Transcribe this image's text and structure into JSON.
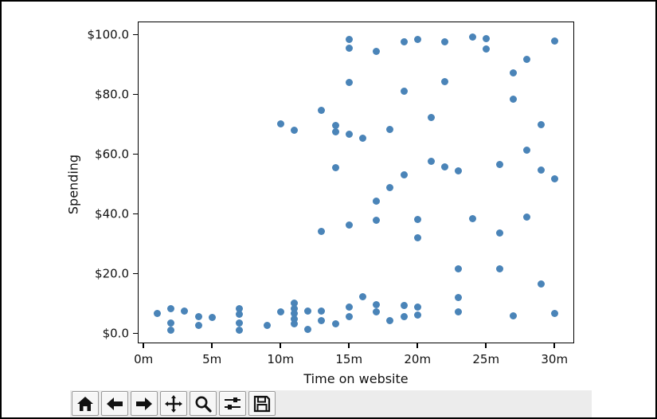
{
  "window": {
    "background": "#ffffff",
    "border_color": "#000000"
  },
  "chart_data": {
    "type": "scatter",
    "title": "",
    "xlabel": "Time on website",
    "ylabel": "Spending",
    "x_tick_values": [
      0,
      5,
      10,
      15,
      20,
      25,
      30
    ],
    "x_tick_labels": [
      "0m",
      "5m",
      "10m",
      "15m",
      "20m",
      "25m",
      "30m"
    ],
    "y_tick_values": [
      0,
      20,
      40,
      60,
      80,
      100
    ],
    "y_tick_labels": [
      "$0.0",
      "$20.0",
      "$40.0",
      "$60.0",
      "$80.0",
      "$100.0"
    ],
    "xlim": [
      -0.42,
      31.44
    ],
    "ylim": [
      -3.33,
      104.4
    ],
    "grid": false,
    "legend": null,
    "dot_color": "#4a84b8",
    "points": [
      [
        1,
        6.6
      ],
      [
        2,
        8.4
      ],
      [
        2,
        3.5
      ],
      [
        2,
        1.0
      ],
      [
        3,
        7.5
      ],
      [
        4,
        5.5
      ],
      [
        4,
        2.8
      ],
      [
        5,
        5.3
      ],
      [
        7,
        8.4
      ],
      [
        7,
        6.5
      ],
      [
        7,
        3.6
      ],
      [
        7,
        1.0
      ],
      [
        9,
        2.6
      ],
      [
        10,
        7.1
      ],
      [
        11,
        10.2
      ],
      [
        11,
        8.4
      ],
      [
        11,
        6.6
      ],
      [
        11,
        4.9
      ],
      [
        11,
        3.1
      ],
      [
        12,
        7.5
      ],
      [
        12,
        1.3
      ],
      [
        13,
        7.5
      ],
      [
        13,
        4.4
      ],
      [
        14,
        3.1
      ],
      [
        15,
        8.9
      ],
      [
        15,
        5.6
      ],
      [
        16,
        12.2
      ],
      [
        17,
        9.5
      ],
      [
        17,
        7.3
      ],
      [
        18,
        4.4
      ],
      [
        19,
        9.3
      ],
      [
        19,
        5.5
      ],
      [
        20,
        8.7
      ],
      [
        20,
        6.2
      ],
      [
        23,
        11.9
      ],
      [
        23,
        7.3
      ],
      [
        27,
        5.9
      ],
      [
        29,
        16.6
      ],
      [
        30,
        6.8
      ],
      [
        10,
        70.2
      ],
      [
        11,
        68.1
      ],
      [
        13,
        74.8
      ],
      [
        13,
        34.2
      ],
      [
        14,
        69.7
      ],
      [
        14,
        67.5
      ],
      [
        14,
        55.5
      ],
      [
        15,
        98.3
      ],
      [
        15,
        95.5
      ],
      [
        15,
        84.0
      ],
      [
        15,
        66.6
      ],
      [
        15,
        36.2
      ],
      [
        16,
        65.3
      ],
      [
        17,
        94.3
      ],
      [
        17,
        44.4
      ],
      [
        17,
        38.0
      ],
      [
        18,
        68.4
      ],
      [
        18,
        48.9
      ],
      [
        19,
        97.7
      ],
      [
        19,
        81.1
      ],
      [
        19,
        53.0
      ],
      [
        20,
        98.3
      ],
      [
        20,
        38.2
      ],
      [
        20,
        31.9
      ],
      [
        21,
        72.4
      ],
      [
        21,
        57.7
      ],
      [
        22,
        97.7
      ],
      [
        22,
        84.2
      ],
      [
        22,
        55.8
      ],
      [
        23,
        54.4
      ],
      [
        23,
        21.7
      ],
      [
        24,
        99.3
      ],
      [
        24,
        38.5
      ],
      [
        25,
        98.6
      ],
      [
        25,
        95.3
      ],
      [
        26,
        56.6
      ],
      [
        26,
        33.5
      ],
      [
        26,
        21.7
      ],
      [
        27,
        87.3
      ],
      [
        27,
        78.3
      ],
      [
        28,
        91.8
      ],
      [
        28,
        61.3
      ],
      [
        28,
        38.9
      ],
      [
        29,
        69.9
      ],
      [
        29,
        54.8
      ],
      [
        30,
        97.9
      ],
      [
        30,
        51.7
      ]
    ]
  },
  "toolbar": {
    "background": "#ececec",
    "buttons": [
      {
        "name": "home",
        "icon": "home-icon"
      },
      {
        "name": "back",
        "icon": "arrow-left-icon"
      },
      {
        "name": "forward",
        "icon": "arrow-right-icon"
      },
      {
        "name": "pan",
        "icon": "move-arrows-icon"
      },
      {
        "name": "zoom",
        "icon": "magnifier-icon"
      },
      {
        "name": "subplots",
        "icon": "sliders-icon"
      },
      {
        "name": "save",
        "icon": "floppy-disk-icon"
      }
    ]
  }
}
